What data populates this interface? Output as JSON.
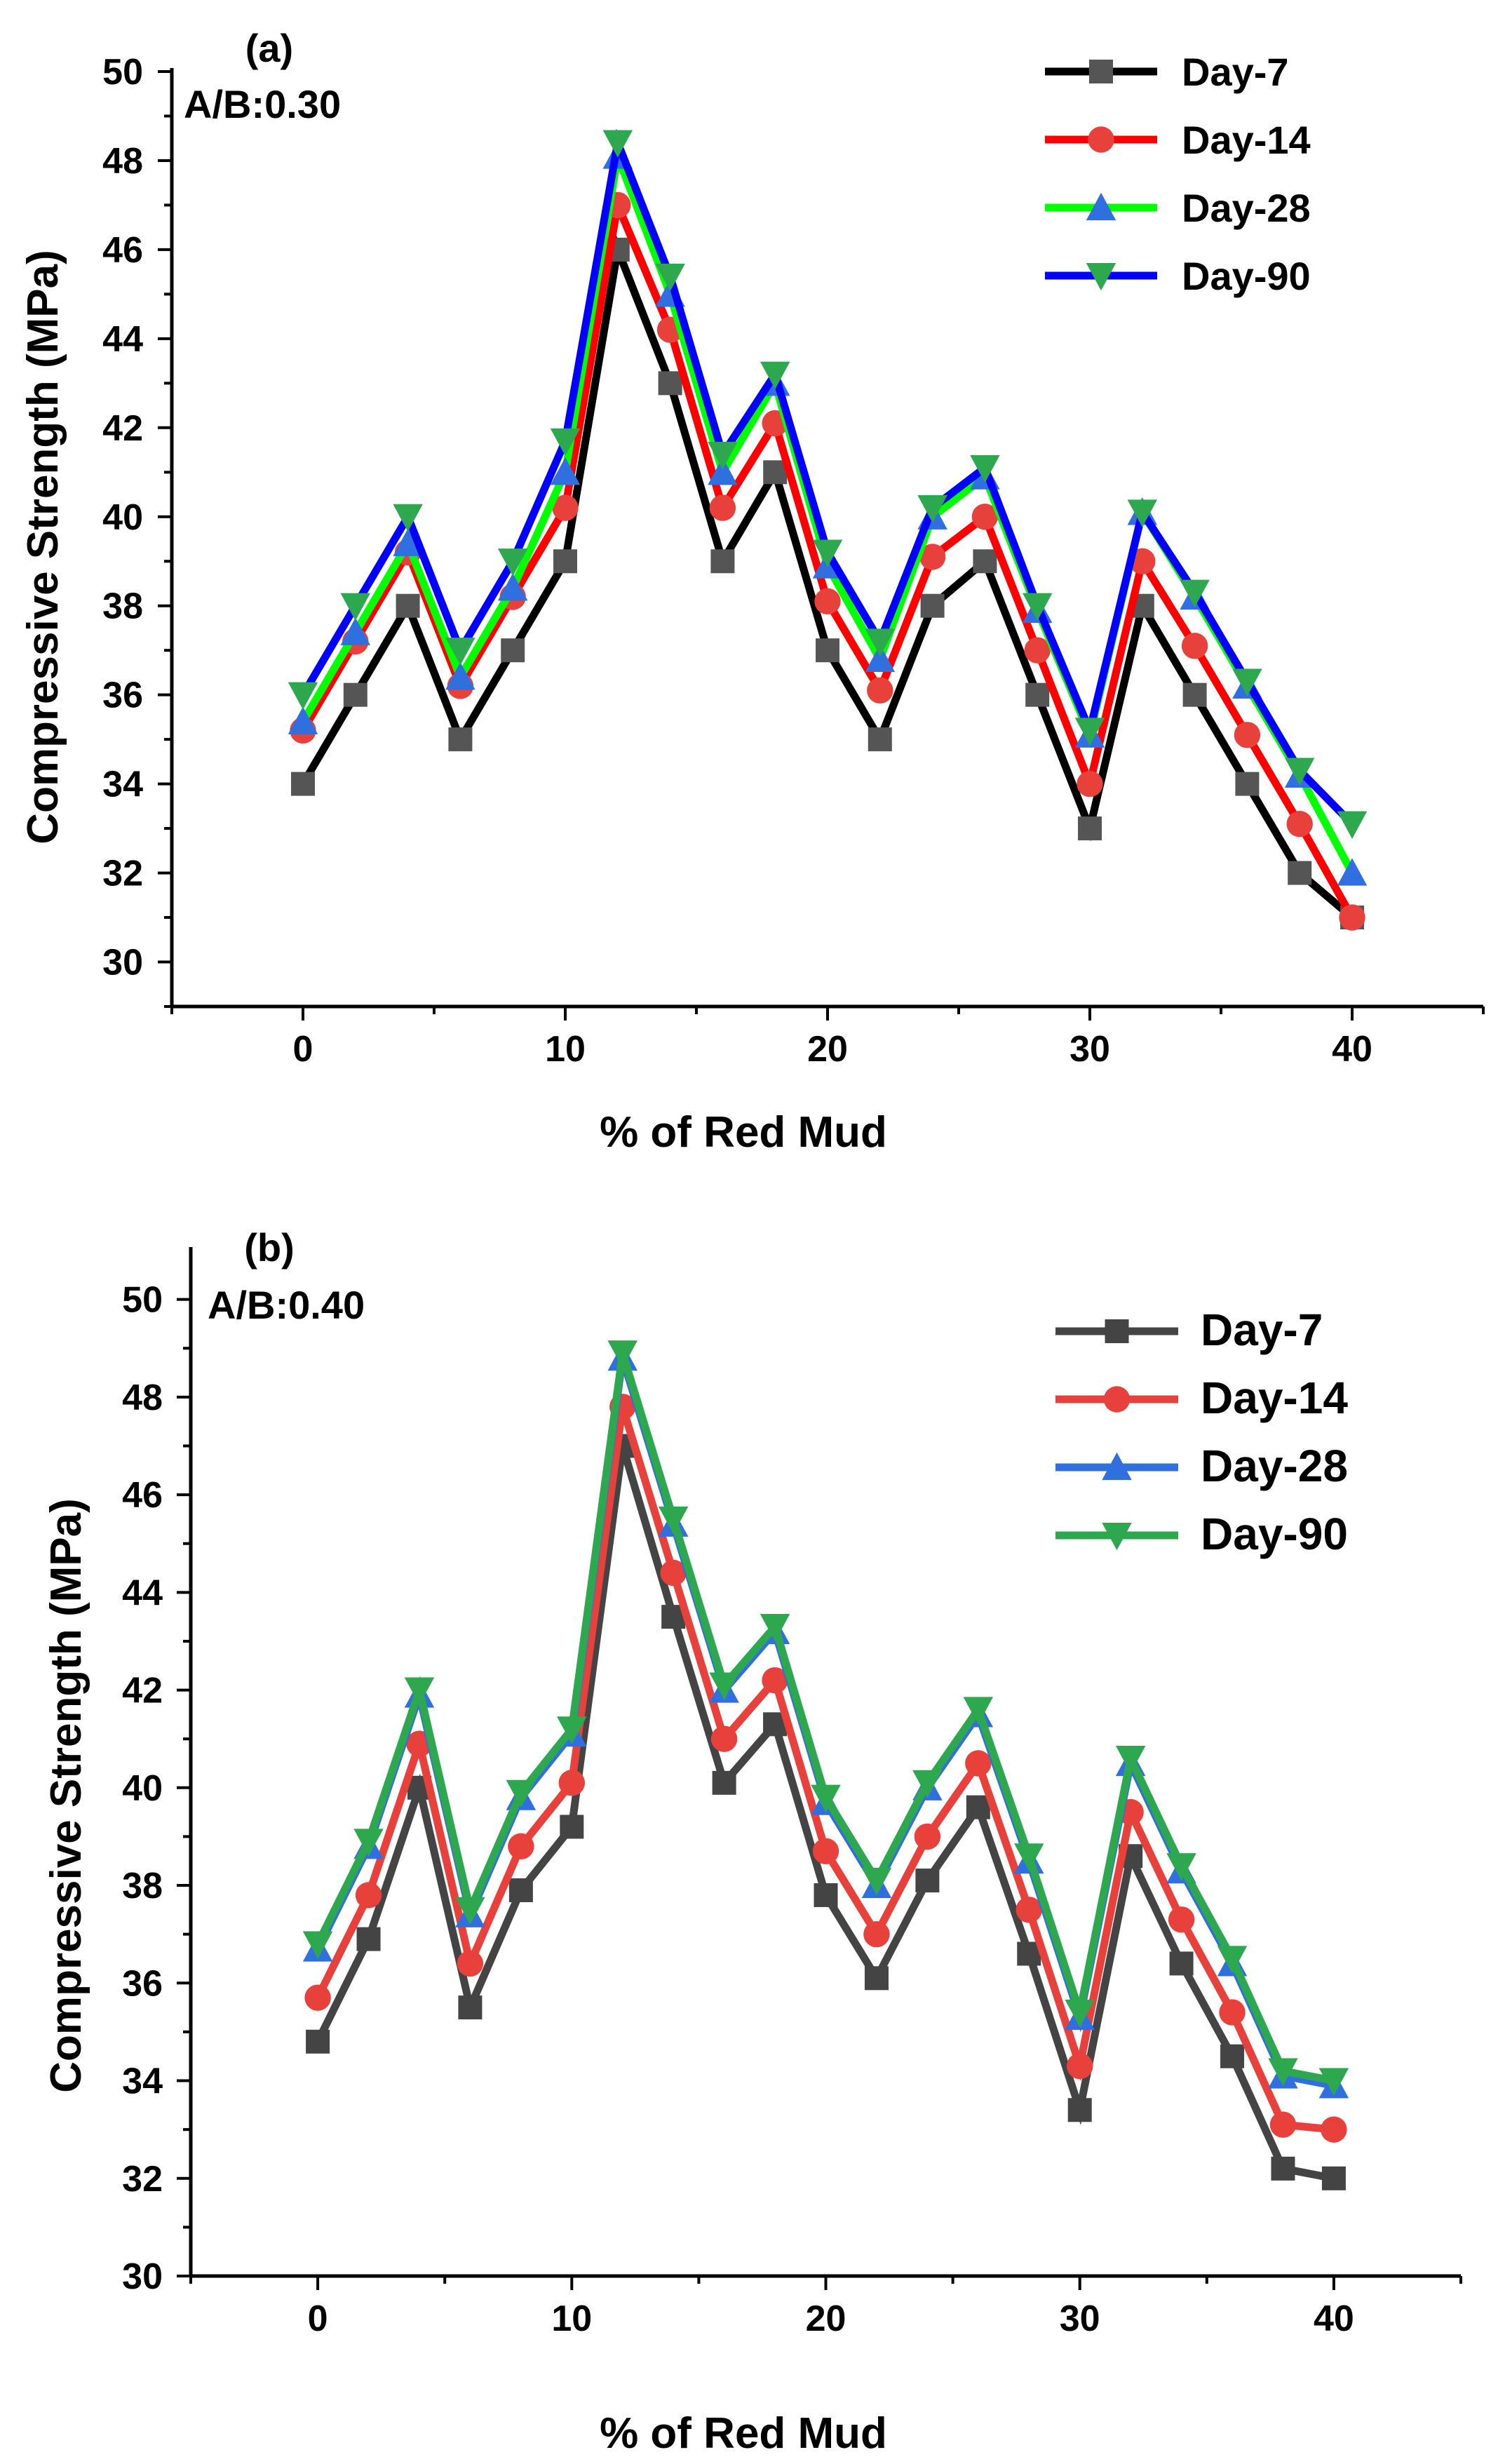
{
  "chart_data": [
    {
      "type": "line",
      "panel_label": "(a)",
      "annotation": "A/B:0.30",
      "xlabel": "% of Red Mud",
      "ylabel": "Compressive Strength (MPa)",
      "xlim": [
        -5,
        45
      ],
      "ylim": [
        29,
        50
      ],
      "xticks": [
        0,
        10,
        20,
        30,
        40
      ],
      "yticks": [
        30,
        32,
        34,
        36,
        38,
        40,
        42,
        44,
        46,
        48,
        50
      ],
      "x": [
        0,
        2,
        4,
        6,
        8,
        10,
        12,
        14,
        16,
        18,
        20,
        22,
        24,
        26,
        28,
        30,
        32,
        34,
        36,
        38,
        40
      ],
      "legend_position": "top-right",
      "series": [
        {
          "name": "Day-7",
          "color": "#000000",
          "marker": "square",
          "marker_color": "#555555",
          "values": [
            34,
            36,
            38,
            35,
            37,
            39,
            46,
            43,
            39,
            41,
            37,
            35,
            38,
            39,
            36,
            33,
            38,
            36,
            34,
            32,
            31
          ]
        },
        {
          "name": "Day-14",
          "color": "#ff0000",
          "marker": "circle",
          "marker_color": "#e8413c",
          "values": [
            35.2,
            37.2,
            39.2,
            36.2,
            38.2,
            40.2,
            47,
            44.2,
            40.2,
            42.1,
            38.1,
            36.1,
            39.1,
            40,
            37,
            34,
            39,
            37.1,
            35.1,
            33.1,
            31
          ]
        },
        {
          "name": "Day-28",
          "color": "#00ff00",
          "marker": "triangle-up",
          "marker_color": "#2f6fe0",
          "values": [
            35.4,
            37.4,
            39.4,
            36.4,
            38.4,
            41,
            48.1,
            45,
            41,
            43,
            38.9,
            36.8,
            40,
            40.9,
            37.9,
            35.1,
            40.1,
            38.2,
            36.2,
            34.2,
            32
          ]
        },
        {
          "name": "Day-90",
          "color": "#0000ff",
          "marker": "triangle-down",
          "marker_color": "#2ea84f",
          "values": [
            36,
            38,
            40,
            37,
            39,
            41.7,
            48.4,
            45.4,
            41.4,
            43.2,
            39.2,
            37.2,
            40.2,
            41.1,
            38,
            35.2,
            40.1,
            38.3,
            36.3,
            34.3,
            33.1
          ]
        }
      ]
    },
    {
      "type": "line",
      "panel_label": "(b)",
      "annotation": "A/B:0.40",
      "xlabel": "% of Red Mud",
      "ylabel": "Compressive Strength (MPa)",
      "xlim": [
        -5,
        45
      ],
      "ylim": [
        30,
        51
      ],
      "xticks": [
        0,
        10,
        20,
        30,
        40
      ],
      "yticks": [
        30,
        32,
        34,
        36,
        38,
        40,
        42,
        44,
        46,
        48,
        50
      ],
      "x": [
        0,
        2,
        4,
        6,
        8,
        10,
        12,
        14,
        16,
        18,
        20,
        22,
        24,
        26,
        28,
        30,
        32,
        34,
        36,
        38,
        40
      ],
      "legend_position": "top-right",
      "series": [
        {
          "name": "Day-7",
          "color": "#444444",
          "marker": "square",
          "marker_color": "#444444",
          "values": [
            34.8,
            36.9,
            40,
            35.5,
            37.9,
            39.2,
            47,
            43.5,
            40.1,
            41.3,
            37.8,
            36.1,
            38.1,
            39.6,
            36.6,
            33.4,
            38.6,
            36.4,
            34.5,
            32.2,
            32
          ]
        },
        {
          "name": "Day-14",
          "color": "#e8413c",
          "marker": "circle",
          "marker_color": "#e8413c",
          "values": [
            35.7,
            37.8,
            40.9,
            36.4,
            38.8,
            40.1,
            47.8,
            44.4,
            41,
            42.2,
            38.7,
            37,
            39,
            40.5,
            37.5,
            34.3,
            39.5,
            37.3,
            35.4,
            33.1,
            33
          ]
        },
        {
          "name": "Day-28",
          "color": "#2f6fe0",
          "marker": "triangle-up",
          "marker_color": "#2f6fe0",
          "values": [
            36.7,
            38.8,
            41.9,
            37.4,
            39.8,
            41.1,
            48.8,
            45.4,
            42,
            43.2,
            39.7,
            38,
            40,
            41.5,
            38.5,
            35.3,
            40.5,
            38.3,
            36.4,
            34.1,
            33.9
          ]
        },
        {
          "name": "Day-90",
          "color": "#2ea84f",
          "marker": "triangle-down",
          "marker_color": "#2ea84f",
          "values": [
            36.8,
            38.9,
            42,
            37.5,
            39.9,
            41.2,
            48.9,
            45.5,
            42.1,
            43.3,
            39.8,
            38.1,
            40.1,
            41.6,
            38.6,
            35.4,
            40.6,
            38.4,
            36.5,
            34.2,
            34
          ]
        }
      ]
    }
  ]
}
